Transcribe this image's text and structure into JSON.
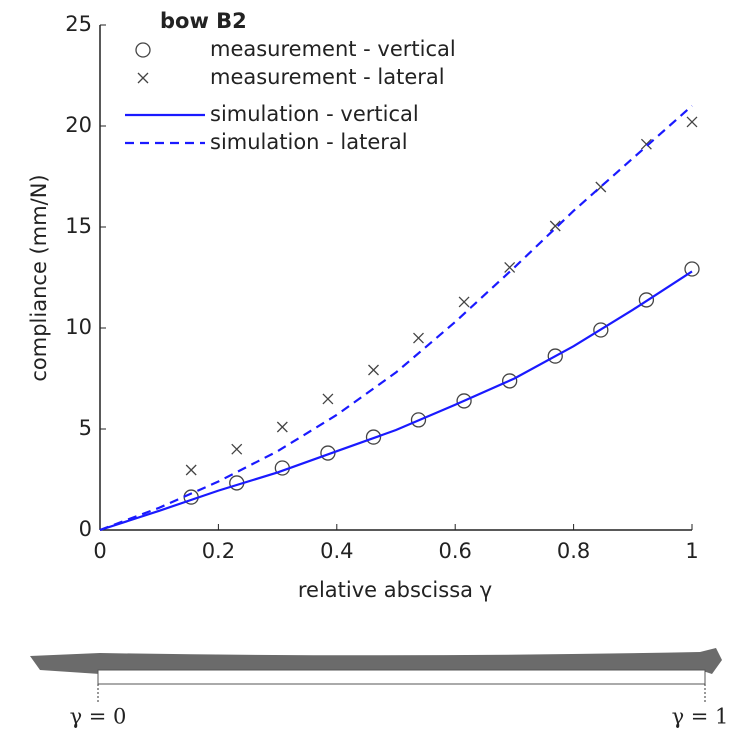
{
  "chart_data": {
    "type": "line",
    "legend_title": "bow B2",
    "xlabel": "relative abscissa γ",
    "ylabel": "compliance (mm/N)",
    "xlim": [
      0,
      1
    ],
    "ylim": [
      0,
      25
    ],
    "xticks": [
      0,
      0.2,
      0.4,
      0.6,
      0.8,
      1
    ],
    "yticks": [
      0,
      5,
      10,
      15,
      20,
      25
    ],
    "legend": "upper left",
    "series": [
      {
        "name": "measurement - vertical",
        "color": "#444444",
        "marker": "o",
        "x": [
          0.154,
          0.231,
          0.308,
          0.385,
          0.462,
          0.538,
          0.615,
          0.692,
          0.769,
          0.846,
          0.923,
          1.0
        ],
        "values": [
          1.63,
          2.33,
          3.07,
          3.81,
          4.6,
          5.45,
          6.39,
          7.38,
          8.61,
          9.9,
          11.39,
          12.92
        ]
      },
      {
        "name": "measurement - lateral",
        "color": "#444444",
        "marker": "x",
        "x": [
          0.154,
          0.231,
          0.308,
          0.385,
          0.462,
          0.538,
          0.615,
          0.692,
          0.769,
          0.846,
          0.923,
          1.0
        ],
        "values": [
          2.97,
          4.0,
          5.1,
          6.49,
          7.92,
          9.5,
          11.29,
          13.0,
          15.05,
          16.98,
          19.1,
          20.2
        ]
      },
      {
        "name": "simulation - vertical",
        "color": "#1a1aff",
        "line_style": "solid",
        "x": [
          0,
          0.1,
          0.2,
          0.3,
          0.4,
          0.5,
          0.6,
          0.7,
          0.8,
          0.9,
          1.0
        ],
        "values": [
          0,
          0.95,
          1.95,
          2.85,
          3.9,
          4.95,
          6.2,
          7.5,
          9.1,
          10.9,
          12.8
        ]
      },
      {
        "name": "simulation - lateral",
        "color": "#1a1aff",
        "line_style": "dashed",
        "x": [
          0,
          0.1,
          0.2,
          0.3,
          0.4,
          0.5,
          0.6,
          0.7,
          0.8,
          0.9,
          1.0
        ],
        "values": [
          0,
          1.1,
          2.4,
          3.9,
          5.7,
          7.8,
          10.3,
          13.0,
          15.8,
          18.4,
          21.0
        ]
      }
    ],
    "annotations": [
      "γ = 0",
      "γ = 1"
    ]
  }
}
